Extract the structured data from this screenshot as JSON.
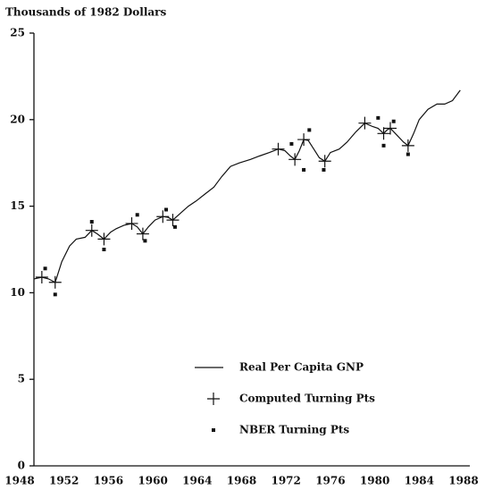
{
  "chart_data": {
    "type": "line",
    "title": "Thousands of 1982 Dollars",
    "xlim": [
      1948,
      1988
    ],
    "xticks": [
      1948,
      1952,
      1956,
      1960,
      1964,
      1968,
      1972,
      1976,
      1980,
      1984,
      1988
    ],
    "ylim": [
      0,
      25
    ],
    "yticks": [
      0,
      5,
      10,
      15,
      20,
      25
    ],
    "grid": false,
    "legend": "lower right",
    "series": [
      {
        "name": "Real Per Capita GNP",
        "color": "#111111",
        "marker": "line",
        "x": [
          1949.3,
          1950.0,
          1950.6,
          1951.2,
          1951.8,
          1952.5,
          1953.1,
          1953.9,
          1954.5,
          1955.0,
          1955.6,
          1956.2,
          1956.7,
          1957.4,
          1958.1,
          1958.6,
          1959.1,
          1959.6,
          1960.2,
          1960.9,
          1961.4,
          1961.8,
          1962.5,
          1963.2,
          1963.9,
          1964.7,
          1965.5,
          1966.2,
          1967.0,
          1967.8,
          1968.8,
          1969.6,
          1970.5,
          1971.3,
          1971.9,
          1972.4,
          1972.8,
          1973.2,
          1973.6,
          1974.0,
          1974.6,
          1975.0,
          1975.5,
          1976.0,
          1976.8,
          1977.5,
          1978.3,
          1979.1,
          1979.8,
          1980.3,
          1980.8,
          1981.1,
          1981.4,
          1982.0,
          1982.6,
          1983.0,
          1983.5,
          1984.0,
          1984.8,
          1985.6,
          1986.3,
          1987.0,
          1987.7
        ],
        "values": [
          10.8,
          10.9,
          10.8,
          10.6,
          11.8,
          12.7,
          13.1,
          13.2,
          13.6,
          13.4,
          13.1,
          13.5,
          13.7,
          13.9,
          14.0,
          13.8,
          13.4,
          13.8,
          14.2,
          14.4,
          14.35,
          14.2,
          14.6,
          15.0,
          15.3,
          15.7,
          16.1,
          16.7,
          17.3,
          17.5,
          17.7,
          17.9,
          18.1,
          18.3,
          18.2,
          17.9,
          17.7,
          18.2,
          18.85,
          18.8,
          18.2,
          17.8,
          17.6,
          18.1,
          18.3,
          18.7,
          19.3,
          19.8,
          19.6,
          19.5,
          19.2,
          19.4,
          19.5,
          19.1,
          18.7,
          18.5,
          19.2,
          20.0,
          20.6,
          20.9,
          20.9,
          21.1,
          21.7
        ]
      },
      {
        "name": "Computed Turning Pts",
        "color": "#111111",
        "marker": "plus",
        "x": [
          1950.0,
          1951.2,
          1954.5,
          1955.6,
          1958.1,
          1959.1,
          1960.9,
          1961.8,
          1971.3,
          1972.8,
          1973.6,
          1975.5,
          1979.1,
          1980.8,
          1981.4,
          1983.0
        ],
        "values": [
          10.9,
          10.6,
          13.6,
          13.1,
          14.0,
          13.4,
          14.4,
          14.2,
          18.3,
          17.7,
          18.85,
          17.6,
          19.8,
          19.2,
          19.5,
          18.5
        ]
      },
      {
        "name": "NBER Turning Pts",
        "color": "#111111",
        "marker": "square",
        "x": [
          1950.3,
          1951.2,
          1954.5,
          1955.6,
          1958.6,
          1959.3,
          1961.2,
          1962.0,
          1972.5,
          1973.6,
          1974.1,
          1975.4,
          1980.3,
          1980.8,
          1981.7,
          1983.0
        ],
        "values": [
          11.4,
          9.9,
          14.1,
          12.5,
          14.5,
          13.0,
          14.8,
          13.8,
          18.6,
          17.1,
          19.4,
          17.1,
          20.1,
          18.5,
          19.9,
          18.0
        ]
      }
    ]
  }
}
